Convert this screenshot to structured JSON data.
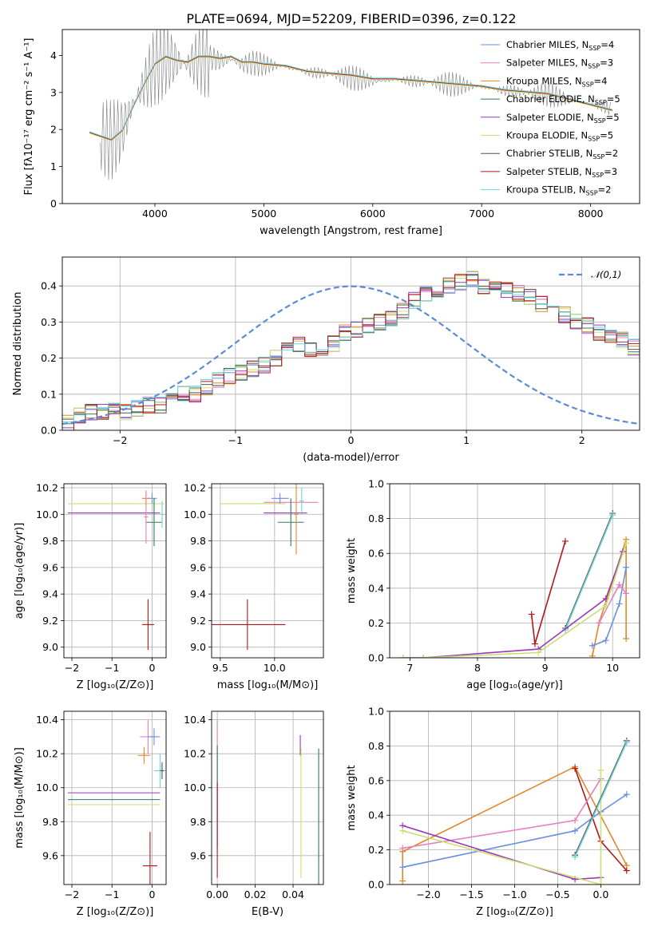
{
  "figure": {
    "title": "PLATE=0694, MJD=52209, FIBERID=0396, z=0.122"
  },
  "models": [
    {
      "name": "Chabrier MILES",
      "nssp": "4",
      "color": "#6a8fe0"
    },
    {
      "name": "Salpeter MILES",
      "nssp": "3",
      "color": "#e87fc0"
    },
    {
      "name": "Kroupa MILES",
      "nssp": "4",
      "color": "#e2882a"
    },
    {
      "name": "Chabrier ELODIE",
      "nssp": "5",
      "color": "#2e7d5b"
    },
    {
      "name": "Salpeter ELODIE",
      "nssp": "5",
      "color": "#9a38b8"
    },
    {
      "name": "Kroupa ELODIE",
      "nssp": "5",
      "color": "#c8e070"
    },
    {
      "name": "Chabrier STELIB",
      "nssp": "2",
      "color": "#555555"
    },
    {
      "name": "Salpeter STELIB",
      "nssp": "3",
      "color": "#b01818"
    },
    {
      "name": "Kroupa STELIB",
      "nssp": "2",
      "color": "#6fd3d8"
    }
  ],
  "chart_data": [
    {
      "id": "spectrum",
      "type": "line",
      "xlabel": "wavelength [Angstrom, rest frame]",
      "ylabel": "Flux [fλ10⁻¹⁷ erg cm⁻² s⁻¹ A⁻¹]",
      "xlim": [
        3150,
        8450
      ],
      "ylim": [
        0,
        4.7
      ],
      "xticks": [
        4000,
        5000,
        6000,
        7000,
        8000
      ],
      "yticks": [
        0,
        1,
        2,
        3,
        4
      ],
      "data_series": {
        "name": "data",
        "color": "#808080",
        "x": [
          3500,
          3600,
          3700,
          3800,
          3900,
          4000,
          4100,
          4200,
          4300,
          4400,
          4500,
          4600,
          4700,
          4800,
          4900,
          5000,
          5200,
          5400,
          5600,
          5800,
          6000,
          6200,
          6400,
          6600,
          6800,
          7000,
          7200,
          7400,
          7600,
          7800,
          8000,
          8200
        ],
        "y": [
          1.8,
          1.7,
          2.0,
          2.7,
          3.2,
          3.7,
          3.9,
          3.85,
          3.75,
          3.9,
          3.95,
          3.85,
          3.9,
          3.75,
          3.8,
          3.75,
          3.7,
          3.55,
          3.5,
          3.4,
          3.3,
          3.35,
          3.3,
          3.25,
          3.2,
          3.15,
          3.05,
          3.0,
          2.95,
          2.8,
          2.7,
          2.55
        ]
      },
      "model_series": {
        "x": [
          3400,
          3500,
          3600,
          3700,
          3800,
          3900,
          4000,
          4100,
          4200,
          4300,
          4400,
          4500,
          4600,
          4700,
          4800,
          4900,
          5000,
          5200,
          5400,
          5600,
          5800,
          6000,
          6200,
          6400,
          6600,
          6800,
          7000,
          7200,
          7400,
          7600,
          7800,
          8000,
          8200
        ],
        "y": [
          1.9,
          1.8,
          1.7,
          1.95,
          2.6,
          3.2,
          3.75,
          3.95,
          3.85,
          3.8,
          3.95,
          3.95,
          3.9,
          3.95,
          3.8,
          3.8,
          3.75,
          3.7,
          3.55,
          3.5,
          3.45,
          3.35,
          3.35,
          3.3,
          3.25,
          3.2,
          3.15,
          3.05,
          3.0,
          2.95,
          2.8,
          2.65,
          2.5
        ]
      }
    },
    {
      "id": "residuals",
      "type": "line",
      "xlabel": "(data-model)/error",
      "ylabel": "Normed distribution",
      "xlim": [
        -2.5,
        2.5
      ],
      "ylim": [
        0,
        0.48
      ],
      "xticks": [
        -2,
        -1,
        0,
        1,
        2
      ],
      "yticks": [
        0.0,
        0.1,
        0.2,
        0.3,
        0.4
      ],
      "legend": "𝒩(0,1)",
      "gaussian": {
        "mean": 0,
        "sigma": 1,
        "color": "#5b8bd8"
      },
      "bin_width": 0.1,
      "bin_start": -2.5,
      "histogram": [
        0.02,
        0.04,
        0.05,
        0.05,
        0.06,
        0.05,
        0.06,
        0.07,
        0.07,
        0.08,
        0.1,
        0.1,
        0.12,
        0.14,
        0.15,
        0.16,
        0.17,
        0.18,
        0.2,
        0.22,
        0.24,
        0.22,
        0.23,
        0.24,
        0.27,
        0.28,
        0.29,
        0.3,
        0.31,
        0.33,
        0.36,
        0.38,
        0.39,
        0.4,
        0.41,
        0.42,
        0.4,
        0.4,
        0.39,
        0.38,
        0.37,
        0.35,
        0.34,
        0.32,
        0.3,
        0.29,
        0.27,
        0.26,
        0.25,
        0.23,
        0.21,
        0.19,
        0.17,
        0.16,
        0.15,
        0.14,
        0.12,
        0.11,
        0.1,
        0.09,
        0.08,
        0.07,
        0.06,
        0.05,
        0.05,
        0.04,
        0.04,
        0.03,
        0.03,
        0.03
      ]
    },
    {
      "id": "age-vs-Z",
      "type": "scatter",
      "xlabel": "Z [log₁₀(Z/Z⊙)]",
      "ylabel": "age  [log₁₀(age/yr)]",
      "xlim": [
        -2.2,
        0.35
      ],
      "ylim": [
        8.92,
        10.23
      ],
      "xticks": [
        -2,
        -1,
        0
      ],
      "yticks": [
        9.0,
        9.2,
        9.4,
        9.6,
        9.8,
        10.0,
        10.2
      ],
      "errorbars": [
        {
          "model": "Kroupa ELODIE",
          "x": -0.9,
          "y": 10.08,
          "xerr": 1.2,
          "yerr": 0.0
        },
        {
          "model": "Salpeter ELODIE",
          "x": -0.95,
          "y": 10.01,
          "xerr": 1.15,
          "yerr": 0.0
        },
        {
          "model": "Chabrier MILES",
          "x": 0.0,
          "y": 10.12,
          "xerr": 0.12,
          "yerr": 0.04
        },
        {
          "model": "Kroupa MILES",
          "x": -0.15,
          "y": 10.12,
          "xerr": 0.1,
          "yerr": 0.05
        },
        {
          "model": "Salpeter STELIB",
          "x": -0.1,
          "y": 9.17,
          "xerr": 0.15,
          "yerr": 0.19
        },
        {
          "model": "Chabrier ELODIE",
          "x": 0.05,
          "y": 9.94,
          "xerr": 0.2,
          "yerr": 0.18
        },
        {
          "model": "Salpeter MILES",
          "x": -0.15,
          "y": 9.98,
          "xerr": 0.05,
          "yerr": 0.2
        },
        {
          "model": "Kroupa STELIB",
          "x": 0.25,
          "y": 10.0,
          "xerr": 0.05,
          "yerr": 0.1
        }
      ]
    },
    {
      "id": "age-vs-mass",
      "type": "scatter",
      "xlabel": "mass [log₁₀(M/M⊙)]",
      "ylabel": "",
      "xlim": [
        9.42,
        10.45
      ],
      "ylim": [
        8.92,
        10.23
      ],
      "xticks": [
        9.5,
        10.0
      ],
      "yticks": [
        9.0,
        9.2,
        9.4,
        9.6,
        9.8,
        10.0,
        10.2
      ],
      "errorbars": [
        {
          "model": "Kroupa ELODIE",
          "x": 9.8,
          "y": 10.08,
          "xerr": 0.3,
          "yerr": 0.0
        },
        {
          "model": "Salpeter ELODIE",
          "x": 10.1,
          "y": 10.01,
          "xerr": 0.2,
          "yerr": 0.0
        },
        {
          "model": "Salpeter MILES",
          "x": 10.15,
          "y": 10.09,
          "xerr": 0.25,
          "yerr": 0.0
        },
        {
          "model": "Chabrier MILES",
          "x": 10.05,
          "y": 10.12,
          "xerr": 0.08,
          "yerr": 0.04
        },
        {
          "model": "Salpeter STELIB",
          "x": 9.75,
          "y": 9.17,
          "xerr": 0.35,
          "yerr": 0.19
        },
        {
          "model": "Chabrier ELODIE",
          "x": 10.15,
          "y": 9.94,
          "xerr": 0.12,
          "yerr": 0.18
        },
        {
          "model": "Kroupa MILES",
          "x": 10.2,
          "y": 10.0,
          "xerr": 0.02,
          "yerr": 0.3
        },
        {
          "model": "Kroupa STELIB",
          "x": 10.25,
          "y": 10.1,
          "xerr": 0.02,
          "yerr": 0.1
        }
      ]
    },
    {
      "id": "weight-vs-age",
      "type": "line",
      "xlabel": "age  [log₁₀(age/yr)]",
      "ylabel": "mass weight",
      "xlim": [
        6.7,
        10.4
      ],
      "ylim": [
        0,
        1.0
      ],
      "xticks": [
        7,
        8,
        9,
        10
      ],
      "yticks": [
        0.0,
        0.2,
        0.4,
        0.6,
        0.8,
        1.0
      ],
      "series": [
        {
          "model": "Salpeter STELIB",
          "x": [
            8.8,
            8.85,
            9.3
          ],
          "y": [
            0.25,
            0.08,
            0.67
          ]
        },
        {
          "model": "Chabrier STELIB",
          "x": [
            9.3,
            10.0
          ],
          "y": [
            0.17,
            0.83
          ]
        },
        {
          "model": "Kroupa STELIB",
          "x": [
            9.3,
            10.0
          ],
          "y": [
            0.16,
            0.82
          ]
        },
        {
          "model": "Kroupa MILES",
          "x": [
            9.7,
            9.8,
            10.2,
            10.2
          ],
          "y": [
            0.01,
            0.2,
            0.68,
            0.11
          ]
        },
        {
          "model": "Chabrier MILES",
          "x": [
            9.7,
            9.9,
            10.1,
            10.2
          ],
          "y": [
            0.07,
            0.1,
            0.31,
            0.52
          ]
        },
        {
          "model": "Salpeter MILES",
          "x": [
            9.8,
            10.1,
            10.2
          ],
          "y": [
            0.2,
            0.42,
            0.37
          ]
        },
        {
          "model": "Salpeter ELODIE",
          "x": [
            6.9,
            7.2,
            8.9,
            9.9,
            10.15
          ],
          "y": [
            0.0,
            0.0,
            0.05,
            0.34,
            0.61
          ]
        },
        {
          "model": "Kroupa ELODIE",
          "x": [
            6.9,
            7.2,
            8.9,
            9.9,
            10.2
          ],
          "y": [
            0.0,
            0.0,
            0.03,
            0.3,
            0.66
          ]
        }
      ]
    },
    {
      "id": "mass-vs-Z",
      "type": "scatter",
      "xlabel": "Z [log₁₀(Z/Z⊙)]",
      "ylabel": "mass [log₁₀(M/M⊙)]",
      "xlim": [
        -2.2,
        0.35
      ],
      "ylim": [
        9.43,
        10.45
      ],
      "xticks": [
        -2,
        -1,
        0
      ],
      "yticks": [
        9.6,
        9.8,
        10.0,
        10.2,
        10.4
      ],
      "errorbars": [
        {
          "model": "Salpeter ELODIE",
          "x": -0.95,
          "y": 9.97,
          "xerr": 1.15,
          "yerr": 0.0
        },
        {
          "model": "Chabrier ELODIE",
          "x": -0.95,
          "y": 9.93,
          "xerr": 1.15,
          "yerr": 0.0
        },
        {
          "model": "Kroupa ELODIE",
          "x": -0.95,
          "y": 9.9,
          "xerr": 1.15,
          "yerr": 0.0
        },
        {
          "model": "Salpeter MILES",
          "x": -0.1,
          "y": 10.3,
          "xerr": 0.2,
          "yerr": 0.1
        },
        {
          "model": "Chabrier MILES",
          "x": 0.05,
          "y": 10.3,
          "xerr": 0.15,
          "yerr": 0.05
        },
        {
          "model": "Kroupa MILES",
          "x": -0.2,
          "y": 10.19,
          "xerr": 0.15,
          "yerr": 0.05
        },
        {
          "model": "Salpeter STELIB",
          "x": -0.05,
          "y": 9.54,
          "xerr": 0.18,
          "yerr": 0.2
        },
        {
          "model": "Kroupa STELIB",
          "x": 0.2,
          "y": 10.1,
          "xerr": 0.15,
          "yerr": 0.1
        },
        {
          "model": "Chabrier STELIB",
          "x": 0.25,
          "y": 10.1,
          "xerr": 0.05,
          "yerr": 0.05
        }
      ]
    },
    {
      "id": "mass-vs-ebv",
      "type": "scatter",
      "xlabel": "E(B-V)",
      "ylabel": "",
      "xlim": [
        -0.003,
        0.056
      ],
      "ylim": [
        9.43,
        10.45
      ],
      "xticks": [
        0.0,
        0.02,
        0.04
      ],
      "yticks": [
        9.6,
        9.8,
        10.0,
        10.2,
        10.4
      ],
      "xtick_labels": [
        "0.00",
        "0.02",
        "0.04"
      ],
      "errorbars": [
        {
          "model": "Salpeter MILES",
          "x": 0.0,
          "y": 10.1,
          "xerr": 0.0,
          "yerr": 0.3
        },
        {
          "model": "Chabrier ELODIE",
          "x": 0.0,
          "y": 9.95,
          "xerr": 0.0,
          "yerr": 0.3
        },
        {
          "model": "Salpeter STELIB",
          "x": 0.0,
          "y": 9.75,
          "xerr": 0.0,
          "yerr": 0.28
        },
        {
          "model": "Salpeter ELODIE",
          "x": 0.0438,
          "y": 10.25,
          "xerr": 0.0,
          "yerr": 0.06
        },
        {
          "model": "Kroupa ELODIE",
          "x": 0.0442,
          "y": 9.85,
          "xerr": 0.0,
          "yerr": 0.38
        },
        {
          "model": "Chabrier ELODIE",
          "x": 0.0535,
          "y": 9.83,
          "xerr": 0.0,
          "yerr": 0.4
        }
      ]
    },
    {
      "id": "weight-vs-Z",
      "type": "line",
      "xlabel": "Z [log₁₀(Z/Z⊙)]",
      "ylabel": "mass weight",
      "xlim": [
        -2.45,
        0.45
      ],
      "ylim": [
        0,
        1.0
      ],
      "xticks": [
        -2.0,
        -1.5,
        -1.0,
        -0.5,
        0.0
      ],
      "yticks": [
        0.0,
        0.2,
        0.4,
        0.6,
        0.8,
        1.0
      ],
      "xtick_labels": [
        "−2.0",
        "−1.5",
        "−1.0",
        "−0.5",
        "0.0"
      ],
      "series": [
        {
          "model": "Kroupa MILES",
          "x": [
            -2.3,
            -2.3,
            -0.3,
            0.3
          ],
          "y": [
            0.02,
            0.19,
            0.68,
            0.11
          ]
        },
        {
          "model": "Salpeter STELIB",
          "x": [
            -0.3,
            0.0,
            0.3
          ],
          "y": [
            0.67,
            0.25,
            0.08
          ]
        },
        {
          "model": "Chabrier MILES",
          "x": [
            -2.3,
            -0.3,
            0.0,
            0.3
          ],
          "y": [
            0.1,
            0.31,
            0.42,
            0.52
          ]
        },
        {
          "model": "Salpeter MILES",
          "x": [
            -2.3,
            -0.3,
            0.0
          ],
          "y": [
            0.21,
            0.37,
            0.61
          ]
        },
        {
          "model": "Salpeter ELODIE",
          "x": [
            -2.3,
            -0.3,
            0.0
          ],
          "y": [
            0.34,
            0.03,
            0.04
          ]
        },
        {
          "model": "Kroupa ELODIE",
          "x": [
            -2.3,
            0.0,
            0.0
          ],
          "y": [
            0.31,
            0.0,
            0.66
          ]
        },
        {
          "model": "Chabrier STELIB",
          "x": [
            -0.3,
            0.3
          ],
          "y": [
            0.17,
            0.83
          ]
        },
        {
          "model": "Kroupa STELIB",
          "x": [
            -0.3,
            0.3
          ],
          "y": [
            0.16,
            0.82
          ]
        }
      ]
    }
  ]
}
